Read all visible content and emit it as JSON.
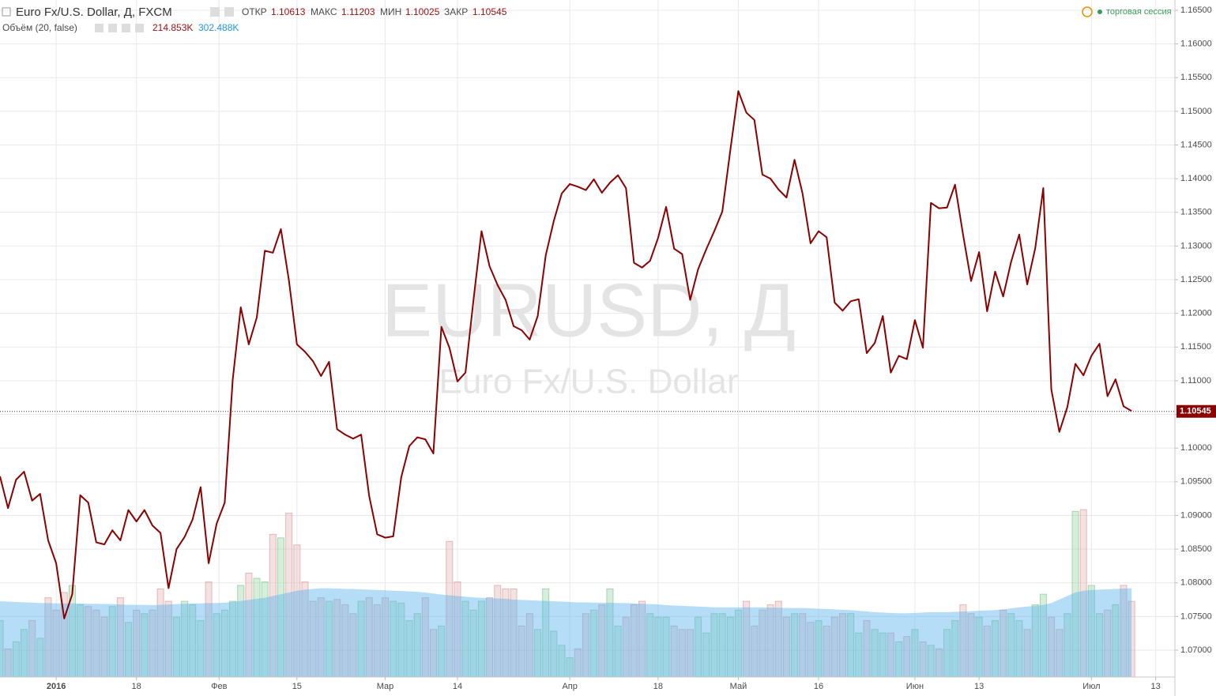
{
  "header": {
    "symbol": "Euro Fx/U.S. Dollar, Д, FXCM",
    "open_label": "ОТКР",
    "open": "1.10613",
    "high_label": "МАКС",
    "high": "1.11203",
    "low_label": "МИН",
    "low": "1.10025",
    "close_label": "ЗАКР",
    "close": "1.10545",
    "session": "торговая сессия",
    "watermark": "EURUSD, Д",
    "watermark_sub": "Euro Fx/U.S. Dollar"
  },
  "chart_data": {
    "type": "line",
    "grid": true,
    "color": "#8b0000",
    "series": [
      {
        "name": "EURUSD",
        "color": "#8b0000",
        "values": [
          1.0958,
          1.0911,
          1.0953,
          1.0965,
          1.0922,
          1.0932,
          1.0863,
          1.0829,
          1.0747,
          1.0783,
          1.093,
          1.0919,
          1.086,
          1.0857,
          1.0878,
          1.0863,
          1.0908,
          1.0891,
          1.0908,
          1.0885,
          1.0874,
          1.0792,
          1.085,
          1.0868,
          1.0894,
          1.0942,
          1.0829,
          1.0888,
          1.0919,
          1.1102,
          1.1209,
          1.1154,
          1.1194,
          1.1293,
          1.129,
          1.1325,
          1.1249,
          1.1154,
          1.1143,
          1.1129,
          1.1107,
          1.1128,
          1.1028,
          1.102,
          1.1014,
          1.102,
          1.0929,
          1.0872,
          1.0867,
          1.0869,
          1.0957,
          1.1003,
          1.1016,
          1.1013,
          1.0992,
          1.118,
          1.1149,
          1.1099,
          1.1112,
          1.122,
          1.1322,
          1.127,
          1.1242,
          1.122,
          1.1181,
          1.1175,
          1.1161,
          1.1196,
          1.1286,
          1.1337,
          1.1378,
          1.1392,
          1.1388,
          1.1383,
          1.1399,
          1.1379,
          1.1394,
          1.1405,
          1.1386,
          1.1275,
          1.1268,
          1.1278,
          1.1312,
          1.1358,
          1.1296,
          1.1288,
          1.122,
          1.1266,
          1.1295,
          1.1322,
          1.1351,
          1.1442,
          1.153,
          1.1498,
          1.1487,
          1.1406,
          1.14,
          1.1384,
          1.1372,
          1.1428,
          1.1378,
          1.1304,
          1.1322,
          1.1313,
          1.1216,
          1.1204,
          1.1218,
          1.1221,
          1.1141,
          1.1156,
          1.1196,
          1.1112,
          1.1137,
          1.1132,
          1.119,
          1.1149,
          1.1364,
          1.1356,
          1.1357,
          1.1391,
          1.1317,
          1.1248,
          1.1291,
          1.1203,
          1.1262,
          1.1225,
          1.1277,
          1.1317,
          1.1243,
          1.1297,
          1.1386,
          1.1087,
          1.1024,
          1.1061,
          1.1125,
          1.1108,
          1.1137,
          1.1155,
          1.1077,
          1.1102,
          1.1062,
          1.1055
        ]
      }
    ],
    "volume": {
      "name": "Объём (20, false)",
      "last": "214.853K",
      "ma_last": "302.488K",
      "up_color": "#8fcf9a",
      "down_color": "#e0a8a8",
      "ma_color": "#5ab4f0",
      "ylim": [
        0,
        500
      ],
      "values": [
        160,
        80,
        100,
        135,
        160,
        110,
        225,
        190,
        240,
        260,
        205,
        200,
        190,
        170,
        200,
        225,
        155,
        190,
        180,
        190,
        250,
        215,
        170,
        215,
        205,
        160,
        270,
        180,
        190,
        215,
        260,
        295,
        280,
        270,
        405,
        395,
        465,
        375,
        270,
        215,
        225,
        215,
        220,
        205,
        180,
        215,
        225,
        205,
        225,
        215,
        210,
        160,
        180,
        225,
        135,
        145,
        385,
        270,
        215,
        190,
        215,
        225,
        260,
        250,
        250,
        145,
        180,
        135,
        250,
        130,
        90,
        55,
        80,
        180,
        190,
        205,
        250,
        145,
        170,
        205,
        215,
        180,
        170,
        170,
        145,
        135,
        135,
        170,
        125,
        180,
        180,
        170,
        190,
        215,
        145,
        190,
        205,
        215,
        170,
        180,
        180,
        155,
        160,
        145,
        170,
        180,
        180,
        125,
        160,
        135,
        125,
        125,
        100,
        115,
        135,
        100,
        90,
        80,
        135,
        160,
        205,
        180,
        170,
        145,
        160,
        190,
        180,
        160,
        135,
        205,
        235,
        170,
        135,
        180,
        470,
        475,
        260,
        180,
        190,
        205,
        260,
        214.853
      ],
      "ma": [
        215,
        214,
        213,
        212,
        211,
        210,
        210,
        209,
        209,
        209,
        209,
        208,
        208,
        207,
        207,
        206,
        205,
        205,
        205,
        204,
        205,
        206,
        207,
        208,
        209,
        209,
        210,
        210,
        211,
        213,
        216,
        219,
        222,
        225,
        230,
        235,
        240,
        245,
        248,
        250,
        252,
        252,
        251,
        250,
        250,
        249,
        248,
        247,
        246,
        245,
        244,
        243,
        242,
        240,
        237,
        234,
        232,
        230,
        228,
        226,
        225,
        224,
        223,
        222,
        220,
        219,
        218,
        217,
        216,
        215,
        214,
        213,
        212,
        212,
        211,
        211,
        211,
        210,
        210,
        209,
        208,
        207,
        206,
        204,
        203,
        202,
        201,
        200,
        199,
        198,
        198,
        198,
        198,
        198,
        198,
        198,
        197,
        197,
        196,
        196,
        196,
        195,
        194,
        193,
        192,
        191,
        190,
        188,
        186,
        184,
        183,
        182,
        181,
        181,
        182,
        183,
        184,
        184,
        184,
        185,
        186,
        187,
        188,
        189,
        190,
        192,
        195,
        198,
        200,
        202,
        205,
        210,
        220,
        230,
        240,
        245,
        247,
        248,
        249,
        250,
        251,
        252
      ]
    },
    "last_price": {
      "value": 1.10545,
      "label": "1.10545"
    },
    "xlim": [
      0,
      146.4
    ],
    "xticks": [
      {
        "value": 7,
        "label": "2016"
      },
      {
        "value": 17,
        "label": "18"
      },
      {
        "value": 27.3,
        "label": "Фев"
      },
      {
        "value": 37,
        "label": "15"
      },
      {
        "value": 48,
        "label": "Мар"
      },
      {
        "value": 57,
        "label": "14"
      },
      {
        "value": 71,
        "label": "Апр"
      },
      {
        "value": 82,
        "label": "18"
      },
      {
        "value": 92,
        "label": "Май"
      },
      {
        "value": 102,
        "label": "16"
      },
      {
        "value": 114,
        "label": "Июн"
      },
      {
        "value": 122,
        "label": "13"
      },
      {
        "value": 136,
        "label": "Июл"
      },
      {
        "value": 144,
        "label": "13"
      }
    ],
    "ylim": [
      1.06601,
      1.16652
    ],
    "yticks": [
      {
        "value": 1.07,
        "label": "1.07000"
      },
      {
        "value": 1.075,
        "label": "1.07500"
      },
      {
        "value": 1.08,
        "label": "1.08000"
      },
      {
        "value": 1.085,
        "label": "1.08500"
      },
      {
        "value": 1.09,
        "label": "1.09000"
      },
      {
        "value": 1.095,
        "label": "1.09500"
      },
      {
        "value": 1.1,
        "label": "1.10000"
      },
      {
        "value": 1.105,
        "label": "1.10500"
      },
      {
        "value": 1.11,
        "label": "1.11000"
      },
      {
        "value": 1.115,
        "label": "1.11500"
      },
      {
        "value": 1.12,
        "label": "1.12000"
      },
      {
        "value": 1.125,
        "label": "1.12500"
      },
      {
        "value": 1.13,
        "label": "1.13000"
      },
      {
        "value": 1.135,
        "label": "1.13500"
      },
      {
        "value": 1.14,
        "label": "1.14000"
      },
      {
        "value": 1.145,
        "label": "1.14500"
      },
      {
        "value": 1.15,
        "label": "1.15000"
      },
      {
        "value": 1.155,
        "label": "1.15500"
      },
      {
        "value": 1.16,
        "label": "1.16000"
      },
      {
        "value": 1.165,
        "label": "1.16500"
      }
    ]
  }
}
